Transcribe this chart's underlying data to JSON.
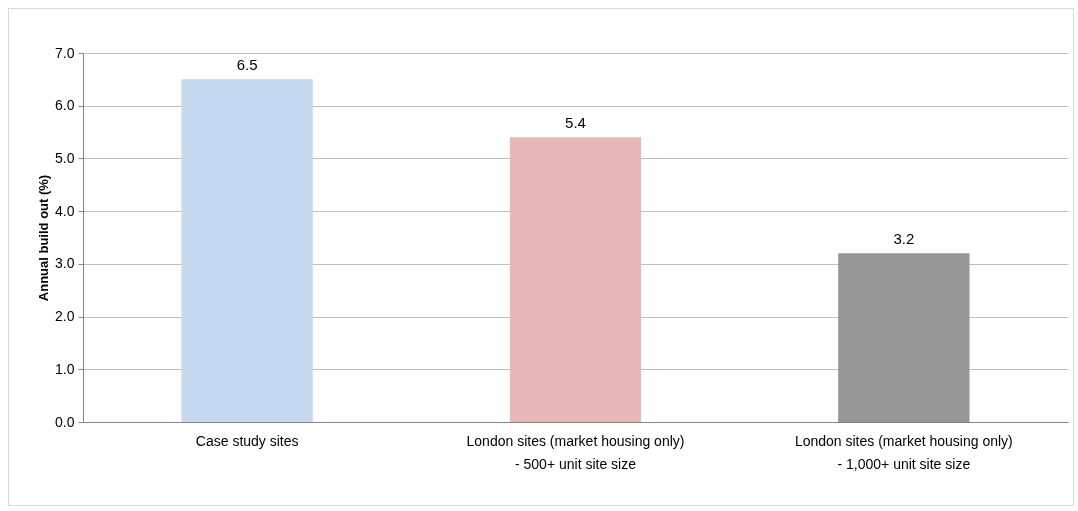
{
  "chart_data": {
    "type": "bar",
    "ylabel": "Annual build out (%)",
    "categories": [
      "Case study sites",
      "London sites (market housing only) - 500+ unit site size",
      "London sites (market housing only) - 1,000+ unit site size"
    ],
    "values": [
      6.5,
      5.4,
      3.2
    ],
    "colors": [
      "#c6d9f1",
      "#e6b9b8",
      "#969696"
    ],
    "ylim": [
      0,
      7
    ],
    "yticks": [
      {
        "value": 0,
        "label": "0.0"
      },
      {
        "value": 1,
        "label": "1.0"
      },
      {
        "value": 2,
        "label": "2.0"
      },
      {
        "value": 3,
        "label": "3.0"
      },
      {
        "value": 4,
        "label": "4.0"
      },
      {
        "value": 5,
        "label": "5.0"
      },
      {
        "value": 6,
        "label": "6.0"
      },
      {
        "value": 7,
        "label": "7.0"
      }
    ],
    "grid": "y",
    "data_labels": true
  }
}
